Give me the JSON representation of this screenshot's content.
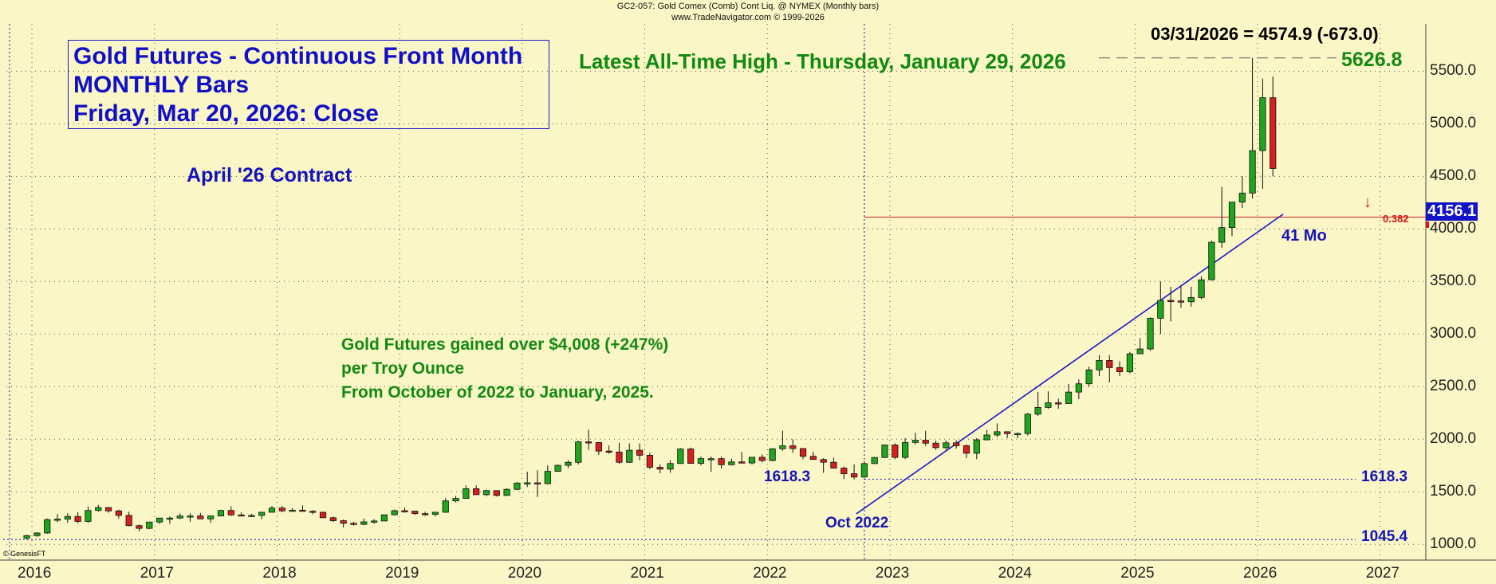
{
  "header": {
    "line1": "GC2-057:  Gold Comex (Comb) Cont Liq. @ NYMEX  (Monthly bars)",
    "line2": "www.TradeNavigator.com © 1999-2026"
  },
  "title_box": {
    "line1": "Gold Futures - Continuous Front Month",
    "line2": "MONTHLY Bars",
    "line3": "Friday, Mar 20, 2026: Close"
  },
  "annotations": {
    "contract": "April '26 Contract",
    "ath": "Latest All-Time High - Thursday, January 29, 2026",
    "ath_value": "5626.8",
    "last_quote": "03/31/2026 = 4574.9 (-673.0)",
    "gain_line1": "Gold Futures gained over $4,008 (+247%)",
    "gain_line2": "per Troy Ounce",
    "gain_line3": "From October of 2022 to January, 2025.",
    "fib_label": "0.382",
    "fib_value": "4156.1",
    "trend_label": "41 Mo",
    "oct2022": "Oct 2022",
    "low1": "1618.3",
    "low1_right": "1618.3",
    "low2": "1045.4",
    "watermark": "© GenesisFT"
  },
  "colors": {
    "background": "#fbf6c6",
    "up": "#1fa51f",
    "down": "#d42020",
    "trendline": "#1a1ac8",
    "fib_line": "#d42020"
  },
  "chart_data": {
    "type": "candlestick",
    "title": "Gold Futures - Continuous Front Month",
    "interval": "monthly",
    "ylim": [
      850,
      5950
    ],
    "yticks": [
      1000,
      1500,
      2000,
      2500,
      3000,
      3500,
      4000,
      4500,
      5000,
      5500
    ],
    "ytick_labels": [
      "1000.0",
      "1500.0",
      "2000.0",
      "2500.0",
      "3000.0",
      "3500.0",
      "4000.0",
      "4500.0",
      "5000.0",
      "5500.0"
    ],
    "xticks": [
      "2016",
      "2017",
      "2018",
      "2019",
      "2020",
      "2021",
      "2022",
      "2023",
      "2024",
      "2025",
      "2026",
      "2027"
    ],
    "start": "2015-12",
    "grid": true,
    "candles": [
      [
        1060,
        1090,
        1045,
        1083
      ],
      [
        1083,
        1115,
        1070,
        1108
      ],
      [
        1108,
        1245,
        1100,
        1235
      ],
      [
        1235,
        1288,
        1210,
        1240
      ],
      [
        1240,
        1295,
        1205,
        1265
      ],
      [
        1265,
        1305,
        1200,
        1218
      ],
      [
        1218,
        1360,
        1205,
        1322
      ],
      [
        1322,
        1375,
        1310,
        1350
      ],
      [
        1350,
        1355,
        1300,
        1318
      ],
      [
        1318,
        1330,
        1245,
        1275
      ],
      [
        1275,
        1310,
        1170,
        1178
      ],
      [
        1178,
        1190,
        1125,
        1152
      ],
      [
        1152,
        1215,
        1145,
        1212
      ],
      [
        1212,
        1250,
        1195,
        1250
      ],
      [
        1250,
        1265,
        1195,
        1250
      ],
      [
        1250,
        1295,
        1240,
        1270
      ],
      [
        1270,
        1295,
        1215,
        1270
      ],
      [
        1270,
        1298,
        1240,
        1242
      ],
      [
        1242,
        1275,
        1205,
        1270
      ],
      [
        1270,
        1330,
        1265,
        1322
      ],
      [
        1322,
        1362,
        1270,
        1280
      ],
      [
        1280,
        1305,
        1265,
        1271
      ],
      [
        1271,
        1290,
        1260,
        1275
      ],
      [
        1275,
        1310,
        1240,
        1305
      ],
      [
        1305,
        1365,
        1302,
        1345
      ],
      [
        1345,
        1365,
        1305,
        1318
      ],
      [
        1318,
        1345,
        1310,
        1325
      ],
      [
        1325,
        1370,
        1315,
        1315
      ],
      [
        1315,
        1325,
        1285,
        1305
      ],
      [
        1305,
        1310,
        1250,
        1253
      ],
      [
        1253,
        1265,
        1211,
        1225
      ],
      [
        1225,
        1235,
        1160,
        1200
      ],
      [
        1200,
        1215,
        1180,
        1190
      ],
      [
        1190,
        1245,
        1182,
        1214
      ],
      [
        1214,
        1240,
        1196,
        1222
      ],
      [
        1222,
        1285,
        1220,
        1281
      ],
      [
        1281,
        1330,
        1275,
        1320
      ],
      [
        1320,
        1350,
        1300,
        1316
      ],
      [
        1316,
        1310,
        1280,
        1292
      ],
      [
        1292,
        1310,
        1270,
        1285
      ],
      [
        1285,
        1310,
        1265,
        1305
      ],
      [
        1305,
        1440,
        1300,
        1413
      ],
      [
        1413,
        1460,
        1400,
        1437
      ],
      [
        1437,
        1560,
        1435,
        1529
      ],
      [
        1529,
        1560,
        1480,
        1472
      ],
      [
        1472,
        1520,
        1458,
        1511
      ],
      [
        1511,
        1480,
        1455,
        1465
      ],
      [
        1465,
        1535,
        1460,
        1523
      ],
      [
        1523,
        1590,
        1515,
        1583
      ],
      [
        1583,
        1690,
        1545,
        1585
      ],
      [
        1585,
        1705,
        1450,
        1577
      ],
      [
        1577,
        1750,
        1570,
        1694
      ],
      [
        1694,
        1760,
        1690,
        1751
      ],
      [
        1751,
        1800,
        1725,
        1780
      ],
      [
        1780,
        1985,
        1760,
        1975
      ],
      [
        1975,
        2090,
        1900,
        1968
      ],
      [
        1968,
        1975,
        1850,
        1887
      ],
      [
        1887,
        1940,
        1860,
        1878
      ],
      [
        1878,
        1965,
        1765,
        1780
      ],
      [
        1780,
        1960,
        1775,
        1895
      ],
      [
        1895,
        1960,
        1800,
        1847
      ],
      [
        1847,
        1870,
        1715,
        1733
      ],
      [
        1733,
        1760,
        1675,
        1715
      ],
      [
        1715,
        1800,
        1680,
        1769
      ],
      [
        1769,
        1915,
        1765,
        1907
      ],
      [
        1907,
        1920,
        1765,
        1770
      ],
      [
        1770,
        1835,
        1750,
        1815
      ],
      [
        1815,
        1835,
        1690,
        1815
      ],
      [
        1815,
        1835,
        1720,
        1757
      ],
      [
        1757,
        1815,
        1750,
        1784
      ],
      [
        1784,
        1880,
        1775,
        1774
      ],
      [
        1774,
        1810,
        1760,
        1828
      ],
      [
        1828,
        1855,
        1780,
        1797
      ],
      [
        1797,
        1915,
        1790,
        1909
      ],
      [
        1909,
        2080,
        1890,
        1937
      ],
      [
        1937,
        2000,
        1870,
        1911
      ],
      [
        1911,
        1915,
        1810,
        1837
      ],
      [
        1837,
        1880,
        1805,
        1807
      ],
      [
        1807,
        1820,
        1680,
        1781
      ],
      [
        1781,
        1825,
        1720,
        1725
      ],
      [
        1725,
        1740,
        1620,
        1672
      ],
      [
        1672,
        1760,
        1618,
        1640
      ],
      [
        1640,
        1790,
        1635,
        1768
      ],
      [
        1768,
        1830,
        1765,
        1826
      ],
      [
        1826,
        1950,
        1820,
        1945
      ],
      [
        1945,
        1960,
        1810,
        1827
      ],
      [
        1827,
        2010,
        1810,
        1969
      ],
      [
        1969,
        2060,
        1950,
        1990
      ],
      [
        1990,
        2080,
        1935,
        1962
      ],
      [
        1962,
        1985,
        1900,
        1919
      ],
      [
        1919,
        1990,
        1900,
        1965
      ],
      [
        1965,
        1990,
        1910,
        1938
      ],
      [
        1938,
        1950,
        1820,
        1866
      ],
      [
        1866,
        2010,
        1810,
        1994
      ],
      [
        1994,
        2090,
        1990,
        2040
      ],
      [
        2040,
        2150,
        2020,
        2071
      ],
      [
        2071,
        2075,
        2010,
        2053
      ],
      [
        2053,
        2065,
        2010,
        2054
      ],
      [
        2054,
        2250,
        2035,
        2238
      ],
      [
        2238,
        2450,
        2220,
        2302
      ],
      [
        2302,
        2455,
        2290,
        2346
      ],
      [
        2346,
        2385,
        2290,
        2339
      ],
      [
        2339,
        2525,
        2340,
        2448
      ],
      [
        2448,
        2570,
        2380,
        2527
      ],
      [
        2527,
        2690,
        2500,
        2659
      ],
      [
        2659,
        2800,
        2600,
        2749
      ],
      [
        2749,
        2800,
        2540,
        2681
      ],
      [
        2681,
        2740,
        2600,
        2641
      ],
      [
        2641,
        2830,
        2625,
        2812
      ],
      [
        2812,
        2960,
        2830,
        2858
      ],
      [
        2858,
        3160,
        2840,
        3150
      ],
      [
        3150,
        3500,
        3000,
        3320
      ],
      [
        3320,
        3450,
        3120,
        3315
      ],
      [
        3315,
        3460,
        3250,
        3307
      ],
      [
        3307,
        3450,
        3260,
        3348
      ],
      [
        3348,
        3550,
        3330,
        3516
      ],
      [
        3516,
        3890,
        3520,
        3873
      ],
      [
        3873,
        4400,
        3820,
        4013
      ],
      [
        4013,
        4230,
        3930,
        4255
      ],
      [
        4255,
        4500,
        4200,
        4341
      ],
      [
        4341,
        5626.8,
        4290,
        4745
      ],
      [
        4745,
        5430,
        4380,
        5248
      ],
      [
        5248,
        5450,
        4500,
        4574.9
      ]
    ]
  }
}
